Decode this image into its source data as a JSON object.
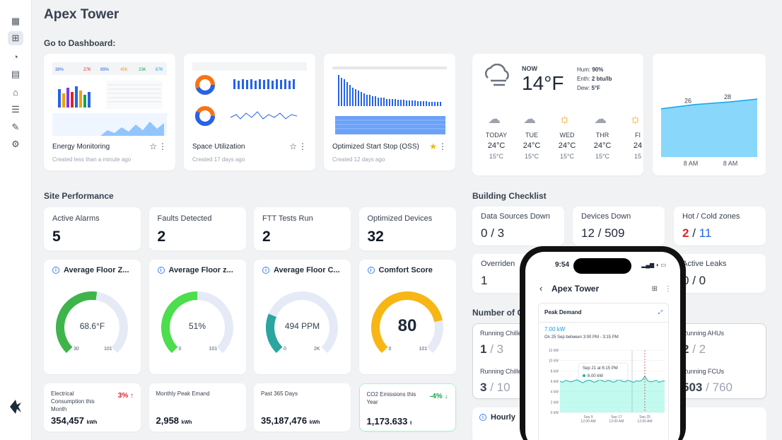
{
  "page": {
    "title": "Apex Tower"
  },
  "sections": {
    "dashboards": "Go to Dashboard:",
    "performance": "Site Performance",
    "checklist": "Building Checklist",
    "count_cut": "Number of C",
    "hourly_cut": "Hourly"
  },
  "dashboards": [
    {
      "name": "Energy Monitoring",
      "created": "Created less than a minute ago",
      "favorite": false
    },
    {
      "name": "Space Utilization",
      "created": "Created 17 days ago",
      "favorite": false
    },
    {
      "name": "Optimized Start Stop (OSS)",
      "created": "Created 12 days ago",
      "favorite": true
    }
  ],
  "weather": {
    "now_label": "NOW",
    "now_temp": "14°F",
    "humidity_label": "Hum:",
    "humidity": "90%",
    "enthalpy_label": "Enth:",
    "enthalpy": "2 btu/lb",
    "dew_label": "Dew:",
    "dew": "5°F",
    "days": [
      {
        "day": "TODAY",
        "high": "24°C",
        "low": "15°C",
        "icon": "snow-cloud-icon"
      },
      {
        "day": "TUE",
        "high": "24°C",
        "low": "15°C",
        "icon": "snow-cloud-icon"
      },
      {
        "day": "WED",
        "high": "24°C",
        "low": "15°C",
        "icon": "sun-icon"
      },
      {
        "day": "THR",
        "high": "24°C",
        "low": "15°C",
        "icon": "fog-cloud-icon"
      },
      {
        "day": "FI",
        "high": "24",
        "low": "15",
        "icon": "sun-icon"
      }
    ]
  },
  "chart_data": {
    "type": "area",
    "categories": [
      "8 AM",
      "8 AM"
    ],
    "values": [
      26,
      28
    ],
    "data_labels": [
      "26",
      "28"
    ],
    "color": "#7dd3fc"
  },
  "stats": [
    {
      "label": "Active Alarms",
      "value": "5"
    },
    {
      "label": "Faults Detected",
      "value": "2"
    },
    {
      "label": "FTT Tests Run",
      "value": "2"
    },
    {
      "label": "Optimized Devices",
      "value": "32"
    }
  ],
  "gauges": [
    {
      "title": "Average Floor Z...",
      "value": "68.6°F",
      "min": "30",
      "max": "101",
      "level": 0.53,
      "color": "#3fb44a"
    },
    {
      "title": "Average Floor z...",
      "value": "51%",
      "min": "0",
      "max": "101",
      "level": 0.5,
      "color": "#4cde4c"
    },
    {
      "title": "Average Floor C...",
      "value": "494 PPM",
      "min": "0",
      "max": "2K",
      "level": 0.25,
      "color": "#2aa5a0"
    },
    {
      "title": "Comfort Score",
      "value": "80",
      "min": "0",
      "max": "101",
      "level": 0.79,
      "color": "#f7b614"
    }
  ],
  "kpis": [
    {
      "label": "Electrical Consumption this Month",
      "value": "354,457",
      "unit": "kWh",
      "delta": "3% ↑",
      "delta_color": "#dc2626"
    },
    {
      "label": "Monthly Peak Emand",
      "value": "2,958",
      "unit": "kWh",
      "delta": "",
      "delta_color": "#111"
    },
    {
      "label": "Past 365 Days",
      "value": "35,187,476",
      "unit": "kWh",
      "delta": "",
      "delta_color": "#111"
    },
    {
      "label": "CO2 Emissions this Year",
      "value": "1,173.633",
      "unit": "t",
      "delta": "-4% ↓",
      "delta_color": "#16a34a"
    }
  ],
  "checklist": [
    {
      "label": "Data Sources Down",
      "a": "0",
      "b": "3"
    },
    {
      "label": "Devices Down",
      "a": "12",
      "b": "509"
    },
    {
      "label": "Hot / Cold zones",
      "a": "2",
      "b": "11"
    },
    {
      "label": "Overriden",
      "a": "1",
      "b": ""
    },
    {
      "label": "Active Leaks",
      "a": "0",
      "b": "0"
    }
  ],
  "counts": [
    {
      "label": "Running Chille",
      "a": "1",
      "b": "3"
    },
    {
      "label": "Running Chille",
      "a": "3",
      "b": "10"
    },
    {
      "label": "Running AHUs",
      "a": "2",
      "b": "2"
    },
    {
      "label": "Running FCUs",
      "a": "503",
      "b": "760"
    }
  ],
  "phone": {
    "time": "9:54",
    "title": "Apex Tower",
    "card_title": "Peak Demand",
    "value": "7.00 kW",
    "subtitle": "On 25 Sep between 3:00 PM - 3:15 PM",
    "y_ticks": [
      "12 kW",
      "10 kW",
      "8 kW",
      "6 kW",
      "4 kW",
      "2 kW",
      "0 kW"
    ],
    "x_ticks": [
      "Sep 9\n12:00 AM",
      "Sep 17\n12:00 AM",
      "Sep 25\n12:00 AM"
    ],
    "tooltip_title": "Sep 21 at 6:15 PM",
    "tooltip_value": "6.00 kW"
  }
}
